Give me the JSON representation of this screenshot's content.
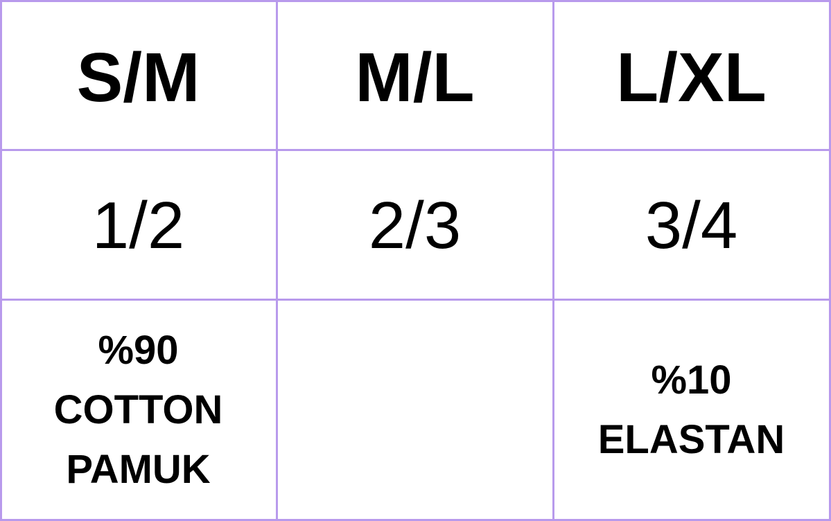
{
  "border_color": "#b89aec",
  "sizes": [
    "S/M",
    "M/L",
    "L/XL"
  ],
  "numbers": [
    "1/2",
    "2/3",
    "3/4"
  ],
  "fabric": {
    "left": {
      "line1": "%90",
      "line2": "COTTON",
      "line3": "PAMUK"
    },
    "middle": "",
    "right": {
      "line1": "%10",
      "line2": "ELASTAN"
    }
  }
}
